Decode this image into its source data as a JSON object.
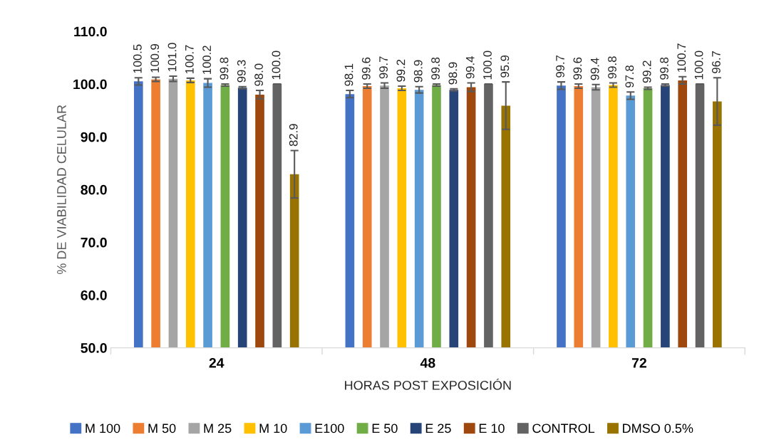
{
  "chart_data": {
    "type": "bar",
    "xlabel": "HORAS POST EXPOSICIÓN",
    "ylabel": "% DE VIABILIDAD CELULAR",
    "categories": [
      "24",
      "48",
      "72"
    ],
    "ylim": [
      50,
      110
    ],
    "yticks": [
      {
        "value": 50,
        "label": "50.0"
      },
      {
        "value": 60,
        "label": "60.0"
      },
      {
        "value": 70,
        "label": "70.0"
      },
      {
        "value": 80,
        "label": "80.0"
      },
      {
        "value": 90,
        "label": "90.0"
      },
      {
        "value": 100,
        "label": "100.0"
      },
      {
        "value": 110,
        "label": "110.0"
      }
    ],
    "grid": false,
    "legend": "bottom",
    "series": [
      {
        "name": "M 100",
        "color": "#4472c4",
        "values": [
          100.5,
          98.1,
          99.7
        ],
        "errors": [
          0.7,
          0.7,
          0.7
        ],
        "value_labels": [
          "100.5",
          "98.1",
          "99.7"
        ]
      },
      {
        "name": "M 50",
        "color": "#ed7d31",
        "values": [
          100.9,
          99.6,
          99.6
        ],
        "errors": [
          0.4,
          0.4,
          0.4
        ],
        "value_labels": [
          "100.9",
          "99.6",
          "99.6"
        ]
      },
      {
        "name": "M 25",
        "color": "#a5a5a5",
        "values": [
          101.0,
          99.7,
          99.4
        ],
        "errors": [
          0.5,
          0.5,
          0.5
        ],
        "value_labels": [
          "101.0",
          "99.7",
          "99.4"
        ]
      },
      {
        "name": "M 10",
        "color": "#ffc000",
        "values": [
          100.7,
          99.2,
          99.8
        ],
        "errors": [
          0.4,
          0.4,
          0.4
        ],
        "value_labels": [
          "100.7",
          "99.2",
          "99.8"
        ]
      },
      {
        "name": "E100",
        "color": "#5b9bd5",
        "values": [
          100.2,
          98.9,
          97.8
        ],
        "errors": [
          0.8,
          0.6,
          0.7
        ],
        "value_labels": [
          "100.2",
          "98.9",
          "97.8"
        ]
      },
      {
        "name": "E 50",
        "color": "#70ad47",
        "values": [
          99.8,
          99.8,
          99.2
        ],
        "errors": [
          0.2,
          0.2,
          0.2
        ],
        "value_labels": [
          "99.8",
          "99.8",
          "99.2"
        ]
      },
      {
        "name": "E 25",
        "color": "#264478",
        "values": [
          99.3,
          98.9,
          99.8
        ],
        "errors": [
          0.2,
          0.2,
          0.2
        ],
        "value_labels": [
          "99.3",
          "98.9",
          "99.8"
        ]
      },
      {
        "name": "E 10",
        "color": "#9e480e",
        "values": [
          98.0,
          99.4,
          100.7
        ],
        "errors": [
          0.8,
          0.8,
          0.7
        ],
        "value_labels": [
          "98.0",
          "99.4",
          "100.7"
        ]
      },
      {
        "name": "CONTROL",
        "color": "#636363",
        "values": [
          100.0,
          100.0,
          100.0
        ],
        "errors": [
          0,
          0,
          0
        ],
        "value_labels": [
          "100.0",
          "100.0",
          "100.0"
        ]
      },
      {
        "name": "DMSO 0.5%",
        "color": "#997300",
        "values": [
          82.9,
          95.9,
          96.7
        ],
        "errors": [
          4.5,
          4.5,
          4.5
        ],
        "value_labels": [
          "82.9",
          "95.9",
          "96.7"
        ]
      }
    ]
  }
}
